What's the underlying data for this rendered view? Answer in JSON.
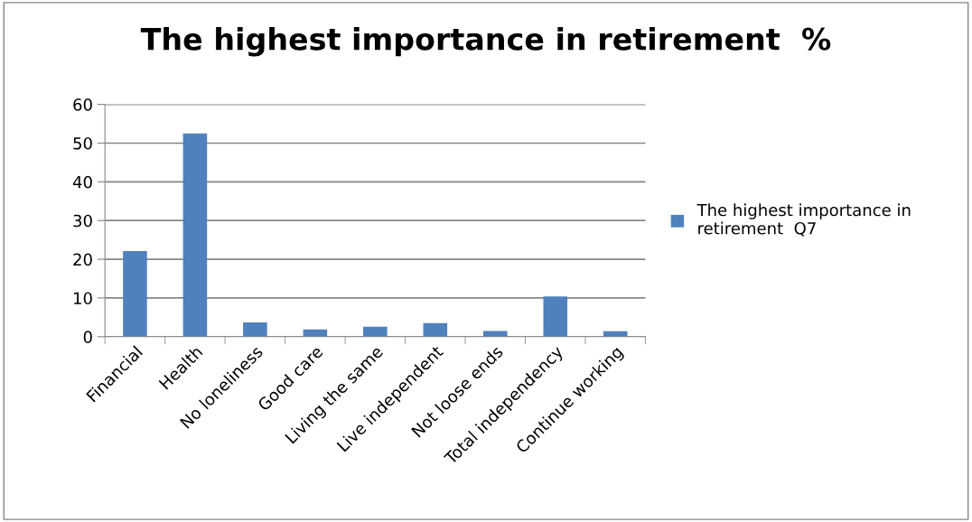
{
  "chart_data": {
    "type": "bar",
    "title": "The highest importance in retirement  %",
    "categories": [
      "Financial",
      "Health",
      "No loneliness",
      "Good care",
      "Living the same",
      "Live independent",
      "Not loose ends",
      "Total independency",
      "Continue working"
    ],
    "series": [
      {
        "name": "The highest importance in retirement  Q7",
        "color": "#4f81bd",
        "values": [
          22.1,
          52.5,
          3.7,
          1.9,
          2.6,
          3.5,
          1.5,
          10.4,
          1.4
        ]
      }
    ],
    "ylim": [
      0,
      60
    ],
    "yticks": [
      0,
      10,
      20,
      30,
      40,
      50,
      60
    ],
    "grid": "y",
    "legend": "right"
  }
}
